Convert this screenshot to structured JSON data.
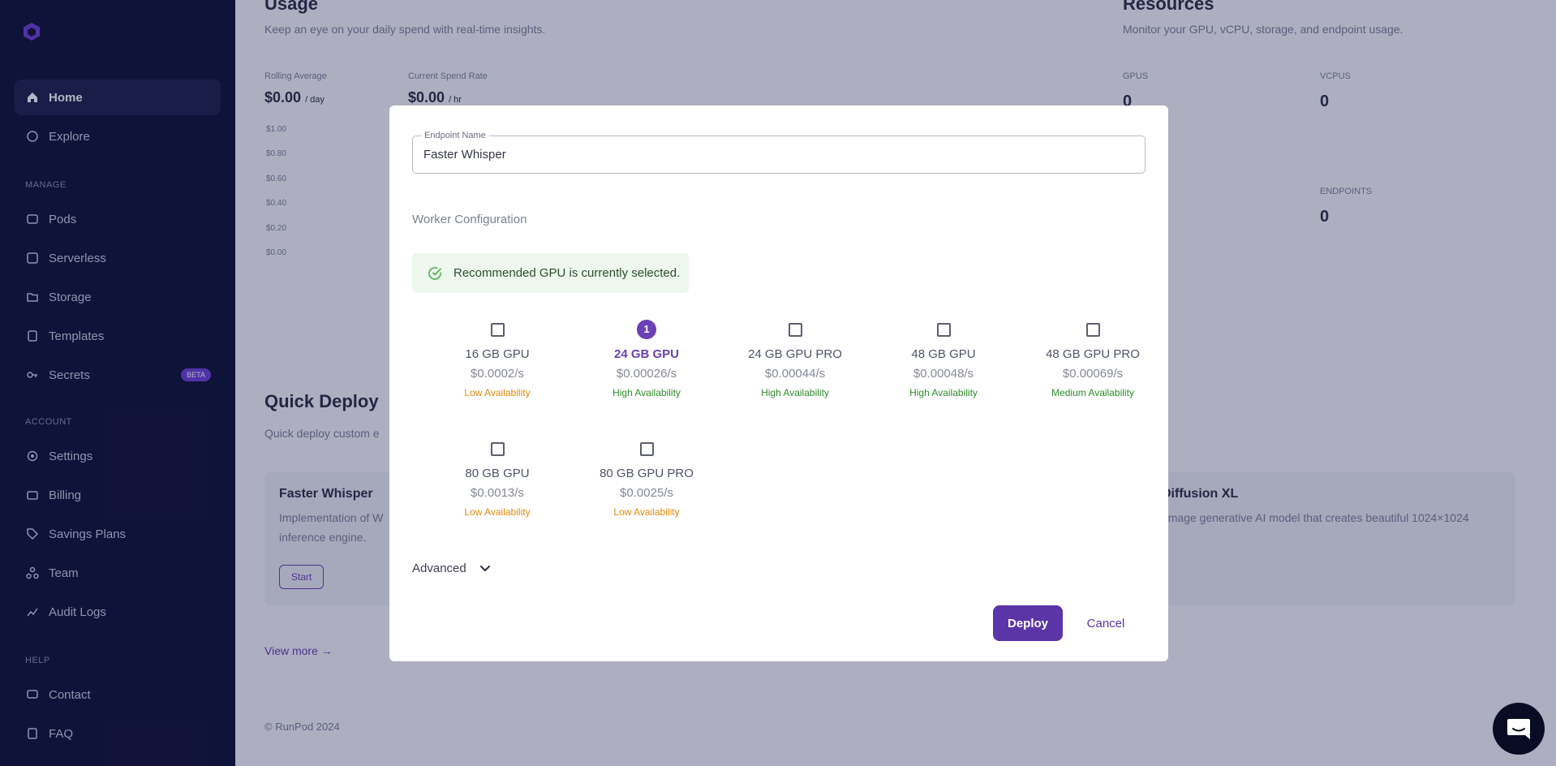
{
  "sidebar": {
    "nav_main": [
      {
        "label": "Home",
        "icon": "home-icon",
        "active": true
      },
      {
        "label": "Explore",
        "icon": "explore-icon"
      }
    ],
    "section_manage": "MANAGE",
    "nav_manage": [
      {
        "label": "Pods",
        "icon": "pods-icon"
      },
      {
        "label": "Serverless",
        "icon": "serverless-icon"
      },
      {
        "label": "Storage",
        "icon": "storage-icon"
      },
      {
        "label": "Templates",
        "icon": "templates-icon"
      },
      {
        "label": "Secrets",
        "icon": "key-icon",
        "badge": "BETA"
      }
    ],
    "section_account": "ACCOUNT",
    "nav_account": [
      {
        "label": "Settings",
        "icon": "gear-icon"
      },
      {
        "label": "Billing",
        "icon": "billing-icon"
      },
      {
        "label": "Savings Plans",
        "icon": "tag-icon"
      },
      {
        "label": "Team",
        "icon": "team-icon"
      },
      {
        "label": "Audit Logs",
        "icon": "audit-icon"
      }
    ],
    "section_help": "HELP",
    "nav_help": [
      {
        "label": "Contact",
        "icon": "chat-icon"
      },
      {
        "label": "FAQ",
        "icon": "faq-icon"
      }
    ]
  },
  "background": {
    "usage_title": "Usage",
    "usage_subtitle": "Keep an eye on your daily spend with real-time insights.",
    "rolling_avg_label": "Rolling Average",
    "rolling_avg_value": "$0.00",
    "rolling_avg_unit": "/ day",
    "spend_rate_label": "Current Spend Rate",
    "spend_rate_value": "$0.00",
    "spend_rate_unit": "/ hr",
    "chart_ticks": [
      "$1.00",
      "$0.80",
      "$0.60",
      "$0.40",
      "$0.20",
      "$0.00"
    ],
    "resources_title": "Resources",
    "resources_subtitle": "Monitor your GPU, vCPU, storage, and endpoint usage.",
    "gpus_label": "GPUS",
    "gpus_value": "0",
    "vcpus_label": "VCPUS",
    "vcpus_value": "0",
    "endpoints_label": "ENDPOINTS",
    "endpoints_value": "0",
    "quick_deploy_title": "Quick Deploy",
    "quick_deploy_subtitle": "Quick deploy custom e",
    "card1_title": "Faster Whisper",
    "card1_desc": "Implementation of W",
    "card1_desc2": "inference engine.",
    "card1_button": "Start",
    "card2_title": "Diffusion XL",
    "card2_desc": "-image generative AI model that creates beautiful 1024×1024",
    "view_more": "View more →",
    "footer": "© RunPod 2024"
  },
  "dialog": {
    "endpoint_name_label": "Endpoint Name",
    "endpoint_name_value": "Faster Whisper",
    "worker_config_title": "Worker Configuration",
    "alert_text": "Recommended GPU is currently selected.",
    "gpus": [
      {
        "name": "16 GB GPU",
        "price": "$0.0002/s",
        "availability": "Low Availability",
        "level": "low",
        "selected": false
      },
      {
        "name": "24 GB GPU",
        "price": "$0.00026/s",
        "availability": "High Availability",
        "level": "high",
        "selected": true,
        "order": "1"
      },
      {
        "name": "24 GB GPU PRO",
        "price": "$0.00044/s",
        "availability": "High Availability",
        "level": "high",
        "selected": false
      },
      {
        "name": "48 GB GPU",
        "price": "$0.00048/s",
        "availability": "High Availability",
        "level": "high",
        "selected": false
      },
      {
        "name": "48 GB GPU PRO",
        "price": "$0.00069/s",
        "availability": "Medium Availability",
        "level": "medium",
        "selected": false
      },
      {
        "name": "80 GB GPU",
        "price": "$0.0013/s",
        "availability": "Low Availability",
        "level": "low",
        "selected": false
      },
      {
        "name": "80 GB GPU PRO",
        "price": "$0.0025/s",
        "availability": "Low Availability",
        "level": "low",
        "selected": false
      }
    ],
    "advanced_label": "Advanced",
    "deploy_label": "Deploy",
    "cancel_label": "Cancel"
  },
  "colors": {
    "accent": "#5b35a8",
    "sidebar_bg": "#0f1133",
    "low_availability": "#e08a0b",
    "high_availability": "#2e8b2b"
  }
}
